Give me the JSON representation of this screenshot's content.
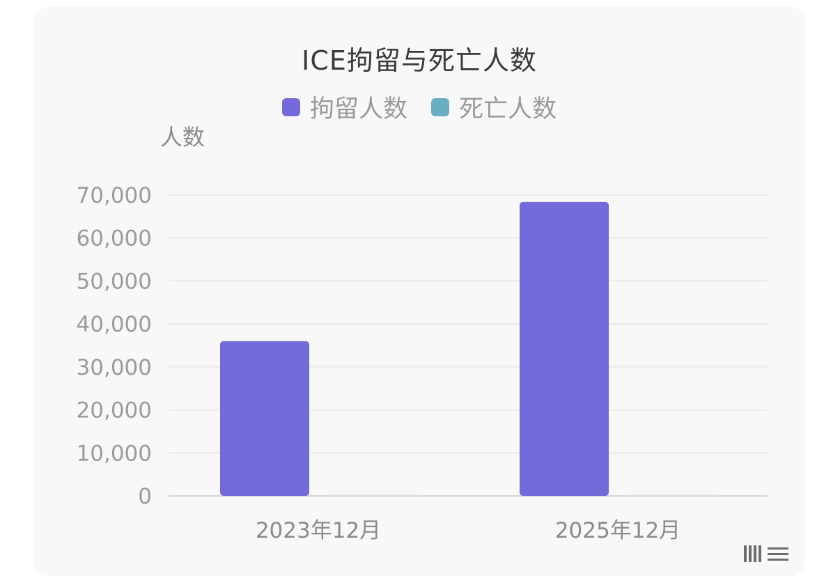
{
  "chart_data": {
    "type": "bar",
    "title": "ICE拘留与死亡人数",
    "ylabel": "人数",
    "xlabel": "",
    "categories": [
      "2023年12月",
      "2025年12月"
    ],
    "series": [
      {
        "name": "拘留人数",
        "color": "#756ad9",
        "values": [
          36000,
          68400
        ]
      },
      {
        "name": "死亡人数",
        "color": "#6aaec4",
        "values": [
          0,
          0
        ]
      }
    ],
    "ylim": [
      0,
      70000
    ],
    "yticks": [
      0,
      10000,
      20000,
      30000,
      40000,
      50000,
      60000,
      70000
    ],
    "ytick_labels": [
      "0",
      "10,000",
      "20,000",
      "30,000",
      "40,000",
      "50,000",
      "60,000",
      "70,000"
    ],
    "grid": true,
    "legend_position": "top-center"
  },
  "colors": {
    "background": "#f8f8f9",
    "grid": "#e6e6e6",
    "detention_bar": "#756ad9",
    "death_bar": "#6aaec4"
  }
}
